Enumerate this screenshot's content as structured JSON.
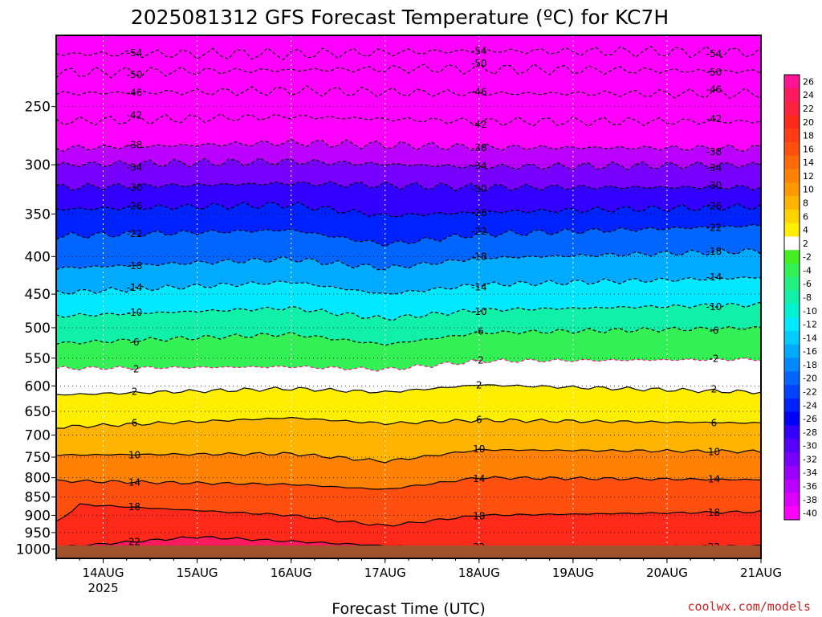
{
  "chart_data": {
    "type": "heatmap",
    "title": "2025081312 GFS Forecast Temperature (ºC) for KC7H",
    "xlabel": "Forecast Time (UTC)",
    "ylabel": "",
    "x_ticks": [
      {
        "label": "14AUG",
        "sub": "2025",
        "hours": 12
      },
      {
        "label": "15AUG",
        "sub": "",
        "hours": 36
      },
      {
        "label": "16AUG",
        "sub": "",
        "hours": 60
      },
      {
        "label": "17AUG",
        "sub": "",
        "hours": 84
      },
      {
        "label": "18AUG",
        "sub": "",
        "hours": 108
      },
      {
        "label": "19AUG",
        "sub": "",
        "hours": 132
      },
      {
        "label": "20AUG",
        "sub": "",
        "hours": 156
      },
      {
        "label": "21AUG",
        "sub": "",
        "hours": 180
      }
    ],
    "xlim_hours": [
      0,
      180
    ],
    "y_axis": "pressure (hPa), logarithmic, inverted",
    "y_ticks": [
      1000,
      950,
      900,
      850,
      800,
      750,
      700,
      650,
      600,
      550,
      500,
      450,
      400,
      350,
      300,
      250
    ],
    "ylim": [
      1030,
      200
    ],
    "grid": true,
    "colorbar": {
      "placement": "right",
      "levels": [
        26,
        24,
        22,
        20,
        18,
        16,
        14,
        12,
        10,
        8,
        6,
        4,
        2,
        -2,
        -4,
        -6,
        -8,
        -10,
        -12,
        -14,
        -16,
        -18,
        -20,
        -22,
        -24,
        -26,
        -28,
        -30,
        -32,
        -34,
        -36,
        -38,
        -40
      ],
      "colors": [
        "#ff1493",
        "#ff1a60",
        "#ff2340",
        "#ff2a1a",
        "#ff3c14",
        "#ff5010",
        "#ff6a0a",
        "#ff8205",
        "#ff9900",
        "#ffb400",
        "#ffd200",
        "#ffee00",
        "#ffffff",
        "#44ee22",
        "#33f055",
        "#22f080",
        "#11f0a8",
        "#00f0d0",
        "#00e8ff",
        "#00ccff",
        "#00aaff",
        "#0088ff",
        "#0066ff",
        "#0044ff",
        "#0022ff",
        "#0000ff",
        "#3300ff",
        "#5500ff",
        "#7700ff",
        "#9900ff",
        "#bb00ff",
        "#dd00ff",
        "#ff00ff"
      ]
    },
    "contours": [
      {
        "label": "-54",
        "profile": [
          [
            0,
            212
          ],
          [
            60,
            212
          ],
          [
            108,
            210
          ],
          [
            180,
            211
          ]
        ]
      },
      {
        "label": "-50",
        "profile": [
          [
            0,
            225
          ],
          [
            60,
            223
          ],
          [
            96,
            222
          ],
          [
            180,
            224
          ]
        ]
      },
      {
        "label": "-46",
        "profile": [
          [
            0,
            240
          ],
          [
            60,
            238
          ],
          [
            108,
            240
          ],
          [
            180,
            240
          ]
        ]
      },
      {
        "label": "-42",
        "profile": [
          [
            0,
            262
          ],
          [
            60,
            258
          ],
          [
            108,
            262
          ],
          [
            180,
            262
          ]
        ]
      },
      {
        "label": "-38",
        "profile": [
          [
            0,
            285
          ],
          [
            60,
            280
          ],
          [
            108,
            284
          ],
          [
            180,
            285
          ]
        ]
      },
      {
        "label": "-34",
        "profile": [
          [
            0,
            300
          ],
          [
            60,
            297
          ],
          [
            108,
            302
          ],
          [
            180,
            300
          ]
        ]
      },
      {
        "label": "-30",
        "profile": [
          [
            0,
            322
          ],
          [
            60,
            318
          ],
          [
            108,
            322
          ],
          [
            180,
            322
          ]
        ]
      },
      {
        "label": "-26",
        "profile": [
          [
            0,
            345
          ],
          [
            60,
            340
          ],
          [
            84,
            352
          ],
          [
            108,
            348
          ],
          [
            180,
            342
          ]
        ]
      },
      {
        "label": "-22",
        "profile": [
          [
            0,
            375
          ],
          [
            60,
            368
          ],
          [
            84,
            385
          ],
          [
            108,
            373
          ],
          [
            180,
            363
          ]
        ]
      },
      {
        "label": "-18",
        "profile": [
          [
            0,
            415
          ],
          [
            60,
            403
          ],
          [
            84,
            415
          ],
          [
            108,
            402
          ],
          [
            180,
            393
          ]
        ]
      },
      {
        "label": "-14",
        "profile": [
          [
            0,
            448
          ],
          [
            60,
            433
          ],
          [
            84,
            450
          ],
          [
            108,
            437
          ],
          [
            180,
            427
          ]
        ]
      },
      {
        "label": "-10",
        "profile": [
          [
            0,
            482
          ],
          [
            60,
            470
          ],
          [
            84,
            486
          ],
          [
            108,
            473
          ],
          [
            180,
            465
          ]
        ]
      },
      {
        "label": "-6",
        "profile": [
          [
            0,
            525
          ],
          [
            60,
            510
          ],
          [
            84,
            527
          ],
          [
            108,
            508
          ],
          [
            180,
            500
          ]
        ]
      },
      {
        "label": "-2",
        "profile": [
          [
            0,
            568
          ],
          [
            60,
            565
          ],
          [
            84,
            570
          ],
          [
            108,
            555
          ],
          [
            180,
            552
          ]
        ]
      },
      {
        "label": "2",
        "profile": [
          [
            0,
            617
          ],
          [
            60,
            605
          ],
          [
            84,
            612
          ],
          [
            108,
            598
          ],
          [
            180,
            612
          ]
        ]
      },
      {
        "label": "6",
        "profile": [
          [
            0,
            683
          ],
          [
            60,
            663
          ],
          [
            84,
            675
          ],
          [
            108,
            668
          ],
          [
            180,
            674
          ]
        ]
      },
      {
        "label": "10",
        "profile": [
          [
            0,
            745
          ],
          [
            60,
            742
          ],
          [
            84,
            760
          ],
          [
            108,
            733
          ],
          [
            180,
            737
          ]
        ]
      },
      {
        "label": "14",
        "profile": [
          [
            0,
            808
          ],
          [
            60,
            817
          ],
          [
            84,
            830
          ],
          [
            108,
            800
          ],
          [
            180,
            805
          ]
        ]
      },
      {
        "label": "18",
        "profile": [
          [
            0,
            920
          ],
          [
            6,
            870
          ],
          [
            60,
            900
          ],
          [
            84,
            930
          ],
          [
            108,
            900
          ],
          [
            180,
            890
          ]
        ]
      },
      {
        "label": "22",
        "profile": [
          [
            0,
            995
          ],
          [
            36,
            963
          ],
          [
            84,
            990
          ],
          [
            120,
            1000
          ],
          [
            180,
            990
          ]
        ]
      }
    ],
    "ground_color": "#a0522d",
    "credit": "coolwx.com/models"
  }
}
